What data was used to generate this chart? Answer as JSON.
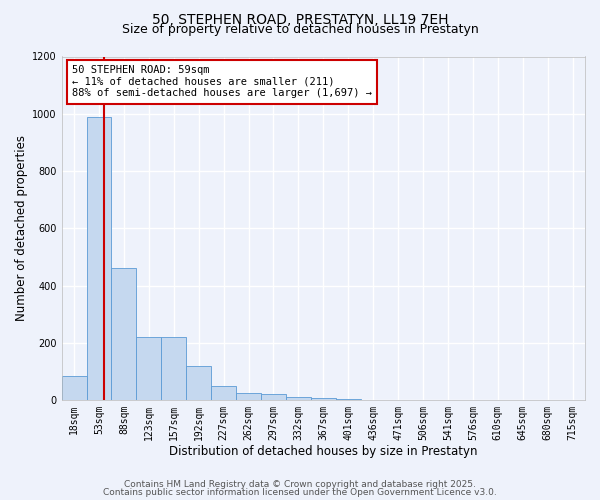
{
  "title_line1": "50, STEPHEN ROAD, PRESTATYN, LL19 7EH",
  "title_line2": "Size of property relative to detached houses in Prestatyn",
  "xlabel": "Distribution of detached houses by size in Prestatyn",
  "ylabel": "Number of detached properties",
  "bar_labels": [
    "18sqm",
    "53sqm",
    "88sqm",
    "123sqm",
    "157sqm",
    "192sqm",
    "227sqm",
    "262sqm",
    "297sqm",
    "332sqm",
    "367sqm",
    "401sqm",
    "436sqm",
    "471sqm",
    "506sqm",
    "541sqm",
    "576sqm",
    "610sqm",
    "645sqm",
    "680sqm",
    "715sqm"
  ],
  "bar_values": [
    85,
    990,
    460,
    222,
    222,
    120,
    50,
    25,
    20,
    12,
    7,
    3,
    1,
    1,
    0,
    0,
    0,
    0,
    0,
    0,
    0
  ],
  "bar_color": "#c5d8ef",
  "bar_edge_color": "#5b9bd5",
  "background_color": "#eef2fb",
  "grid_color": "#ffffff",
  "annotation_text": "50 STEPHEN ROAD: 59sqm\n← 11% of detached houses are smaller (211)\n88% of semi-detached houses are larger (1,697) →",
  "annotation_box_color": "#ffffff",
  "annotation_box_edge_color": "#cc0000",
  "red_line_color": "#cc0000",
  "red_line_x": 1.2,
  "ylim": [
    0,
    1200
  ],
  "yticks": [
    0,
    200,
    400,
    600,
    800,
    1000,
    1200
  ],
  "footnote_line1": "Contains HM Land Registry data © Crown copyright and database right 2025.",
  "footnote_line2": "Contains public sector information licensed under the Open Government Licence v3.0.",
  "title_fontsize": 10,
  "subtitle_fontsize": 9,
  "axis_label_fontsize": 8.5,
  "tick_fontsize": 7,
  "annotation_fontsize": 7.5,
  "footnote_fontsize": 6.5
}
